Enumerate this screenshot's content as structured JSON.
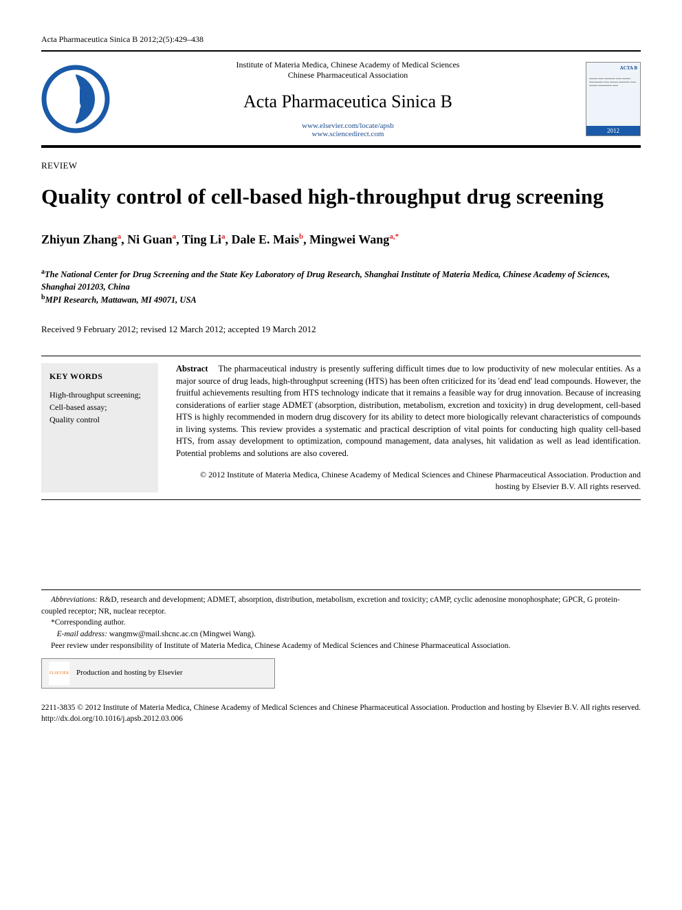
{
  "citation": "Acta Pharmaceutica Sinica B 2012;2(5):429–438",
  "header": {
    "institute_line1": "Institute of Materia Medica, Chinese Academy of Medical Sciences",
    "institute_line2": "Chinese Pharmaceutical Association",
    "journal_name": "Acta Pharmaceutica Sinica B",
    "link1": "www.elsevier.com/locate/apsb",
    "link2": "www.sciencedirect.com",
    "cover_label": "ACTA B",
    "cover_year": "2012",
    "logo_color": "#1a5aa8"
  },
  "article": {
    "type_label": "REVIEW",
    "title": "Quality control of cell-based high-throughput drug screening",
    "authors_html": "Zhiyun Zhang",
    "authors": [
      {
        "name": "Zhiyun Zhang",
        "sup": "a"
      },
      {
        "name": "Ni Guan",
        "sup": "a"
      },
      {
        "name": "Ting Li",
        "sup": "a"
      },
      {
        "name": "Dale E. Mais",
        "sup": "b"
      },
      {
        "name": "Mingwei Wang",
        "sup": "a,*"
      }
    ],
    "affiliations": [
      {
        "sup": "a",
        "text": "The National Center for Drug Screening and the State Key Laboratory of Drug Research, Shanghai Institute of Materia Medica, Chinese Academy of Sciences, Shanghai 201203, China"
      },
      {
        "sup": "b",
        "text": "MPI Research, Mattawan, MI 49071, USA"
      }
    ],
    "history": "Received 9 February 2012; revised 12 March 2012; accepted 19 March 2012",
    "keywords_label": "KEY WORDS",
    "keywords": "High-throughput screening;\nCell-based assay;\nQuality control",
    "abstract_label": "Abstract",
    "abstract_body": "The pharmaceutical industry is presently suffering difficult times due to low productivity of new molecular entities. As a major source of drug leads, high-throughput screening (HTS) has been often criticized for its 'dead end' lead compounds. However, the fruitful achievements resulting from HTS technology indicate that it remains a feasible way for drug innovation. Because of increasing considerations of earlier stage ADMET (absorption, distribution, metabolism, excretion and toxicity) in drug development, cell-based HTS is highly recommended in modern drug discovery for its ability to detect more biologically relevant characteristics of compounds in living systems. This review provides a systematic and practical description of vital points for conducting high quality cell-based HTS, from assay development to optimization, compound management, data analyses, hit validation as well as lead identification. Potential problems and solutions are also covered.",
    "copyright": "© 2012 Institute of Materia Medica, Chinese Academy of Medical Sciences and Chinese Pharmaceutical Association. Production and hosting by Elsevier B.V. All rights reserved."
  },
  "footnotes": {
    "abbrev_label": "Abbreviations:",
    "abbrev_text": " R&D, research and development; ADMET, absorption, distribution, metabolism, excretion and toxicity; cAMP, cyclic adenosine monophosphate; GPCR, G protein-coupled receptor; NR, nuclear receptor.",
    "corresponding": "*Corresponding author.",
    "email_label": "E-mail address:",
    "email": " wangmw@mail.shcnc.ac.cn (Mingwei Wang).",
    "peer": "Peer review under responsibility of Institute of Materia Medica, Chinese Academy of Medical Sciences and Chinese Pharmaceutical Association.",
    "hosting": "Production and hosting by Elsevier",
    "elsevier_mini": "ELSEVIER"
  },
  "bottom": {
    "issn_line": "2211-3835 © 2012 Institute of Materia Medica, Chinese Academy of Medical Sciences and Chinese Pharmaceutical Association. Production and hosting by Elsevier B.V. All rights reserved.",
    "doi": "http://dx.doi.org/10.1016/j.apsb.2012.03.006"
  },
  "colors": {
    "accent_blue": "#1a5aa8",
    "sup_red": "#d22",
    "grey_box": "#ececec",
    "link_blue": "#1a4b8a"
  }
}
